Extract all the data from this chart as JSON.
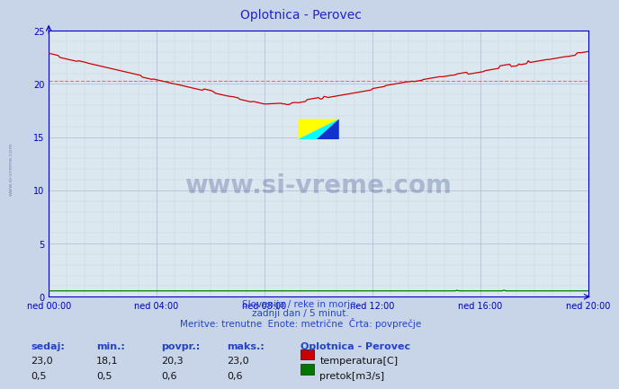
{
  "title": "Oplotnica - Perovec",
  "background_color": "#c8d4e8",
  "plot_bg_color": "#dce8f0",
  "grid_color_major": "#b0b8cc",
  "grid_color_minor": "#c8d0e0",
  "x_labels": [
    "ned 00:00",
    "ned 04:00",
    "ned 08:00",
    "ned 12:00",
    "ned 16:00",
    "ned 20:00"
  ],
  "x_ticks": [
    0,
    48,
    96,
    144,
    192,
    240
  ],
  "total_points": 289,
  "ylim": [
    0,
    25
  ],
  "yticks": [
    0,
    5,
    10,
    15,
    20,
    25
  ],
  "avg_temp": 20.3,
  "temp_color": "#cc0000",
  "flow_color": "#007700",
  "avg_line_color": "#ff6666",
  "subtitle1": "Slovenija / reke in morje.",
  "subtitle2": "zadnji dan / 5 minut.",
  "subtitle3": "Meritve: trenutne  Enote: metrične  Črta: povprečje",
  "footer_label1": "sedaj:",
  "footer_label2": "min.:",
  "footer_label3": "povpr.:",
  "footer_label4": "maks.:",
  "footer_station": "Oplotnica - Perovec",
  "footer_temp_sedaj": "23,0",
  "footer_temp_min": "18,1",
  "footer_temp_povpr": "20,3",
  "footer_temp_maks": "23,0",
  "footer_flow_sedaj": "0,5",
  "footer_flow_min": "0,5",
  "footer_flow_povpr": "0,6",
  "footer_flow_maks": "0,6",
  "legend_temp": "temperatura[C]",
  "legend_flow": "pretok[m3/s]",
  "watermark": "www.si-vreme.com",
  "side_text": "www.si-vreme.com",
  "title_color": "#2222cc",
  "axis_color": "#0000bb",
  "footer_color": "#2244cc",
  "text_color": "#2244cc",
  "spine_color": "#0000bb"
}
